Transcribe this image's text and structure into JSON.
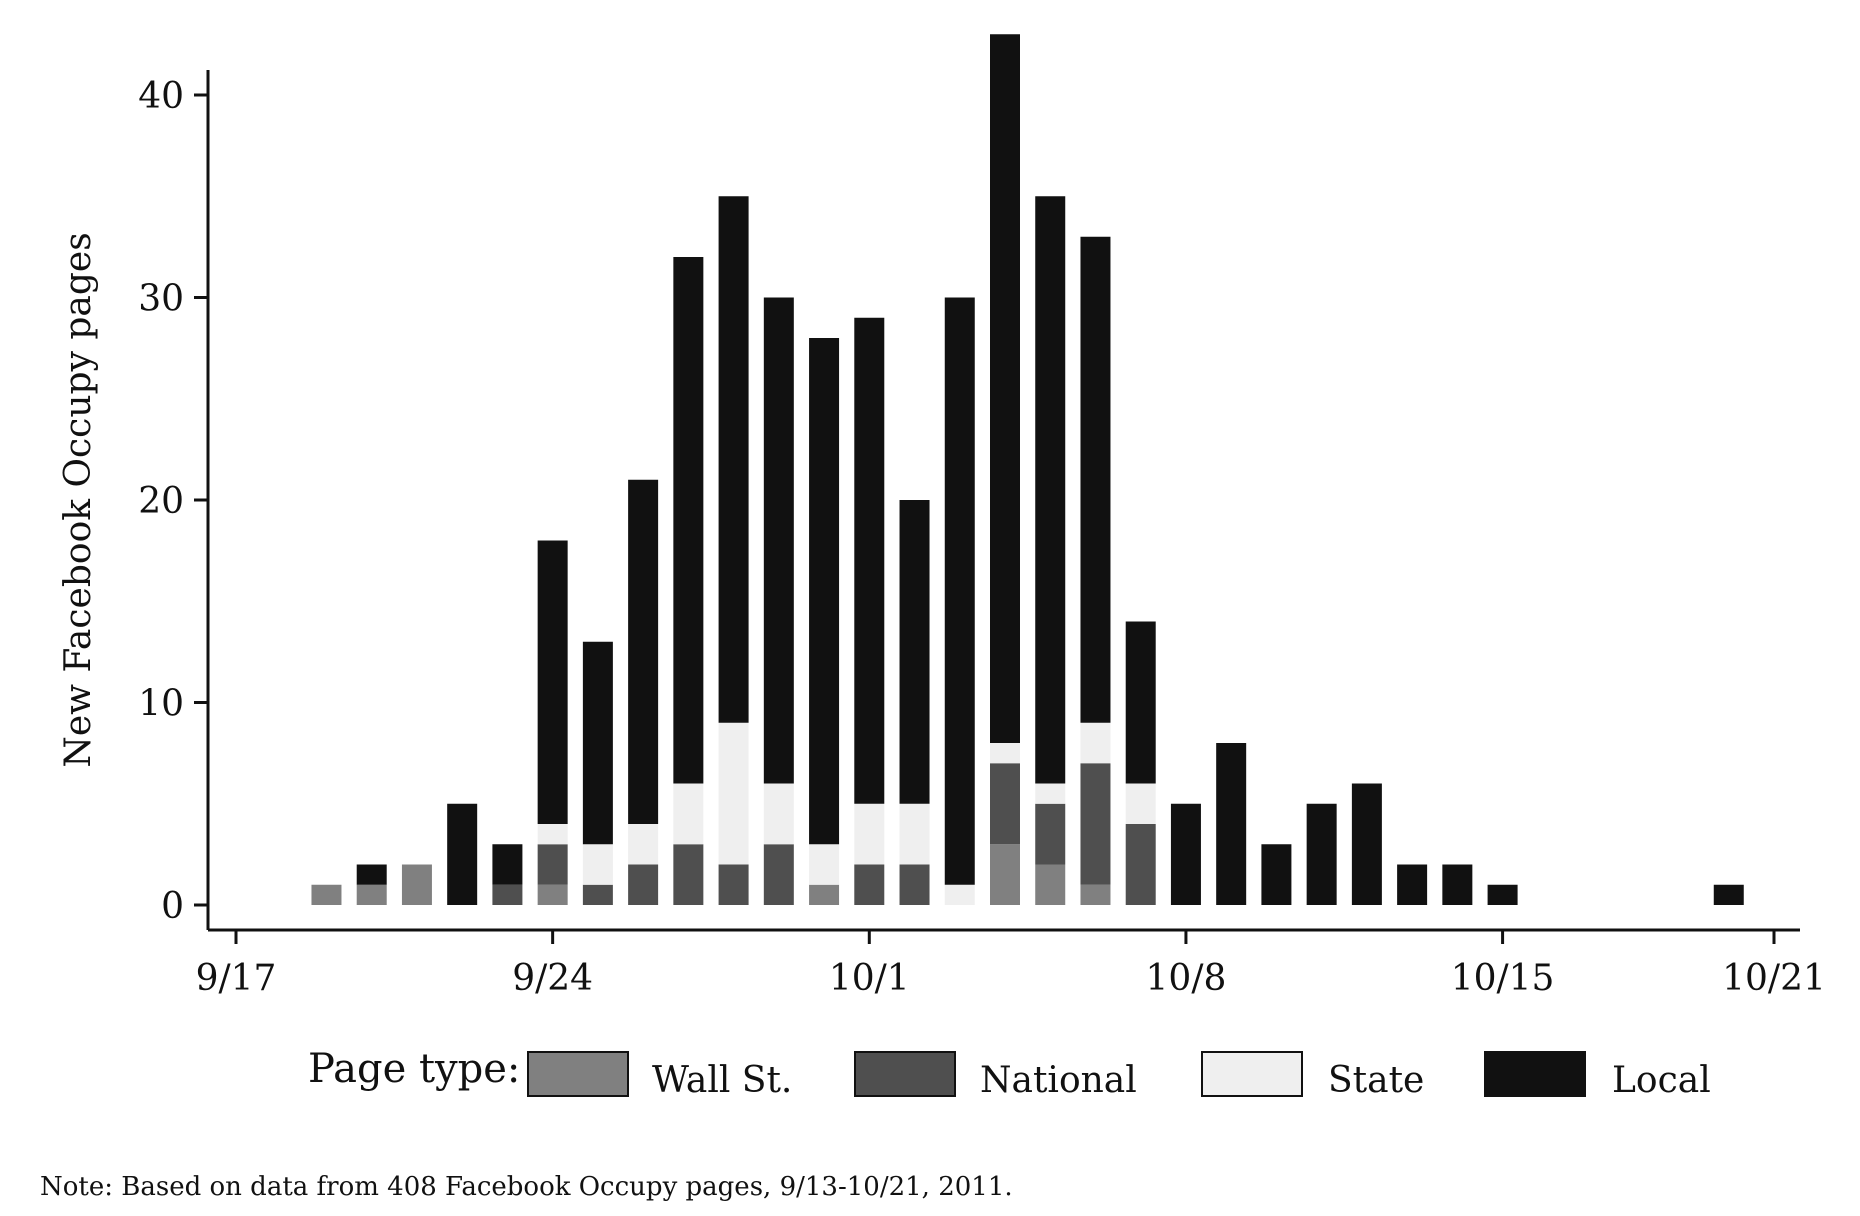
{
  "chart_data": {
    "type": "bar",
    "stacked": true,
    "xlabel": "",
    "ylabel": "New Facebook Occupy pages",
    "ylim": [
      0,
      40
    ],
    "yticks": [
      0,
      10,
      20,
      30,
      40
    ],
    "xticks": [
      "9/17",
      "9/24",
      "10/1",
      "10/8",
      "10/15",
      "10/21"
    ],
    "grid": false,
    "legend": {
      "title": "Page type:",
      "placement": "bottom"
    },
    "categories": [
      "9/19",
      "9/20",
      "9/21",
      "9/22",
      "9/23",
      "9/24",
      "9/25",
      "9/26",
      "9/27",
      "9/28",
      "9/29",
      "9/30",
      "10/1",
      "10/2",
      "10/3",
      "10/4",
      "10/5",
      "10/6",
      "10/7",
      "10/8",
      "10/9",
      "10/10",
      "10/11",
      "10/12",
      "10/13",
      "10/14",
      "10/15",
      "10/16",
      "10/17",
      "10/18",
      "10/19",
      "10/20"
    ],
    "series": [
      {
        "name": "Wall St.",
        "color": "#808080",
        "values": [
          1,
          1,
          2,
          0,
          0,
          1,
          0,
          0,
          0,
          0,
          0,
          1,
          0,
          0,
          0,
          3,
          2,
          1,
          0,
          0,
          0,
          0,
          0,
          0,
          0,
          0,
          0,
          0,
          0,
          0,
          0,
          0
        ]
      },
      {
        "name": "National",
        "color": "#4f4f4f",
        "values": [
          0,
          0,
          0,
          0,
          1,
          2,
          1,
          2,
          3,
          2,
          3,
          0,
          2,
          2,
          0,
          4,
          3,
          6,
          4,
          0,
          0,
          0,
          0,
          0,
          0,
          0,
          0,
          0,
          0,
          0,
          0,
          0
        ]
      },
      {
        "name": "State",
        "color": "#efefef",
        "values": [
          0,
          0,
          0,
          0,
          0,
          1,
          2,
          2,
          3,
          7,
          3,
          2,
          3,
          3,
          1,
          1,
          1,
          2,
          2,
          0,
          0,
          0,
          0,
          0,
          0,
          0,
          0,
          0,
          0,
          0,
          0,
          0
        ]
      },
      {
        "name": "Local",
        "color": "#111111",
        "values": [
          0,
          1,
          0,
          5,
          2,
          14,
          10,
          17,
          26,
          26,
          24,
          25,
          24,
          15,
          29,
          35,
          29,
          24,
          8,
          5,
          8,
          3,
          5,
          6,
          2,
          2,
          1,
          0,
          0,
          0,
          0,
          1
        ]
      }
    ]
  },
  "note": "Note: Based on data from 408 Facebook Occupy pages, 9/13-10/21, 2011."
}
